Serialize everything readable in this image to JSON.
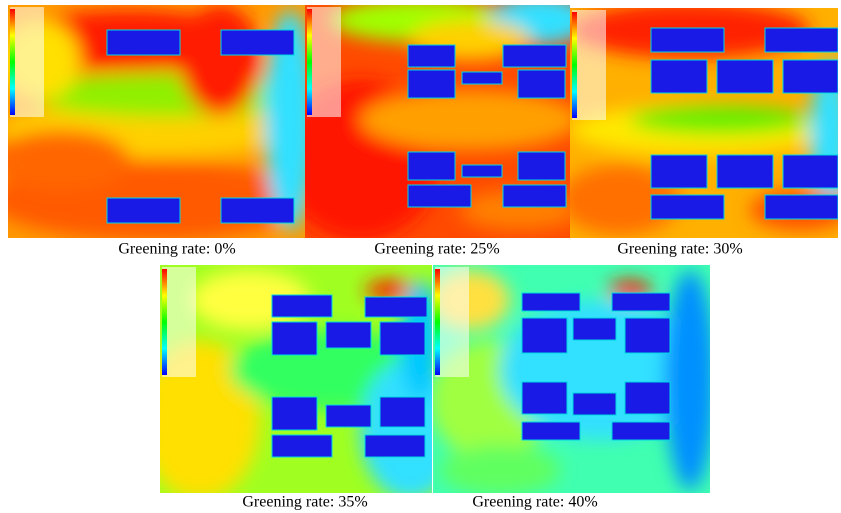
{
  "panels": [
    {
      "caption": "Greening rate: 0%"
    },
    {
      "caption": "Greening rate: 25%"
    },
    {
      "caption": "Greening rate: 30%"
    },
    {
      "caption": "Greening rate: 35%"
    },
    {
      "caption": "Greening rate: 40%"
    }
  ]
}
